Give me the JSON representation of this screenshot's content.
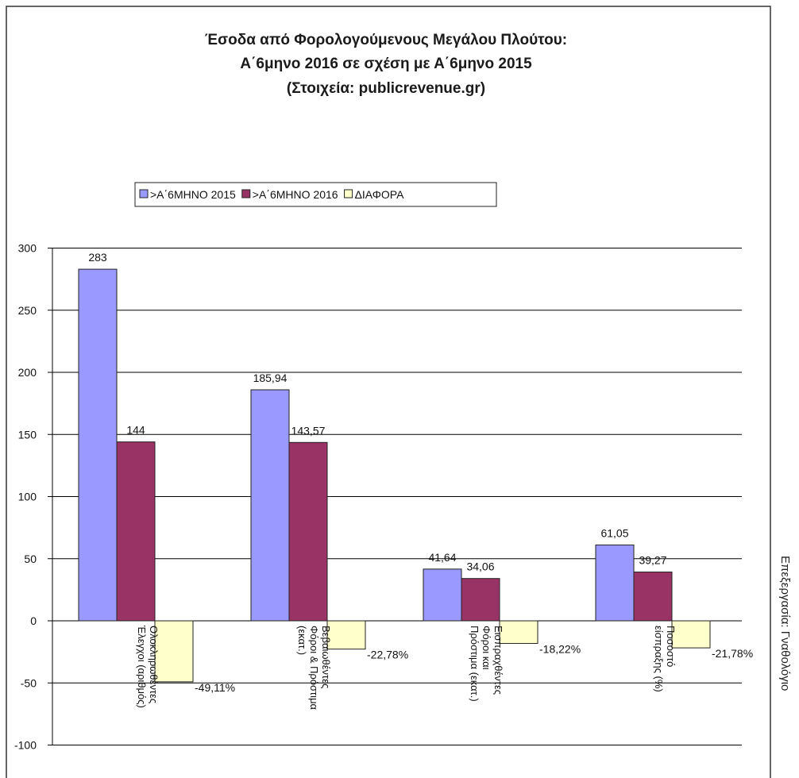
{
  "chart_data": {
    "type": "bar",
    "title": [
      "Έσοδα από Φορολογούμενους Μεγάλου Πλούτου:",
      "Α΄6μηνο 2016 σε σχέση με Α΄6μηνο 2015",
      "(Στοιχεία: publicrevenue.gr)"
    ],
    "categories": [
      [
        "Ολοκληρωθέντες",
        "Έλεγχοι (αριθμός)"
      ],
      [
        "Βεβαιωθέντες",
        "Φόροι & Πρόστιμα",
        "(εκατ.)"
      ],
      [
        "Εισπραχθέντες",
        "Φόροι και",
        "Πρόστιμα (εκατ.)"
      ],
      [
        "Ποσοστό",
        "είσπραξης (%)"
      ]
    ],
    "series": [
      {
        "name": ">Α΄6ΜΗΝΟ 2015",
        "color": "#9999ff",
        "values": [
          283,
          185.94,
          41.64,
          61.05
        ],
        "labels": [
          "283",
          "185,94",
          "41,64",
          "61,05"
        ]
      },
      {
        "name": ">Α΄6ΜΗΝΟ 2016",
        "color": "#993366",
        "values": [
          144,
          143.57,
          34.06,
          39.27
        ],
        "labels": [
          "144",
          "143,57",
          "34,06",
          "39,27"
        ]
      },
      {
        "name": "ΔΙΑΦΟΡΑ",
        "color": "#ffffcc",
        "values": [
          -49.11,
          -22.78,
          -18.22,
          -21.78
        ],
        "labels": [
          "-49,11%",
          "-22,78%",
          "-18,22%",
          "-21,78%"
        ]
      }
    ],
    "ylim": [
      -100,
      300
    ],
    "yticks": [
      300,
      250,
      200,
      150,
      100,
      50,
      0,
      -50,
      -100
    ],
    "grid": true,
    "legend_position": "top-left",
    "credit": "Επεξεργασία: Γναθολόγιο"
  }
}
